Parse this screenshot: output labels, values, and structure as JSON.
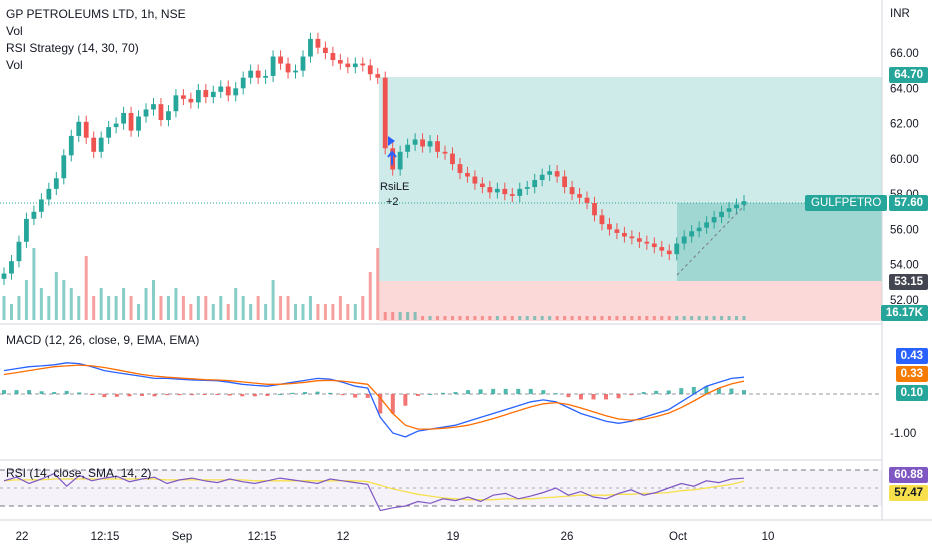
{
  "header": {
    "title": "GP PETROLEUMS LTD, 1h, NSE",
    "indicators": [
      "Vol",
      "RSI Strategy (14, 30, 70)",
      "Vol"
    ],
    "currency": "INR"
  },
  "macd_legend": "MACD (12, 26, close, 9, EMA, EMA)",
  "rsi_legend": "RSI (14, close, SMA, 14, 2)",
  "symbol_tag": "GULFPETRO",
  "strategy": {
    "signal": "RsiLE",
    "qty": "+2"
  },
  "price_labels": {
    "target": "64.70",
    "last": "57.60",
    "stop": "53.15",
    "volume": "16.17K"
  },
  "macd_labels": {
    "macd": "0.43",
    "signal": "0.33",
    "hist": "0.10"
  },
  "rsi_labels": {
    "rsi": "60.88",
    "ma": "57.47"
  },
  "colors": {
    "up": "#26a69a",
    "down": "#ef5350",
    "target_zone": "#26a69a",
    "stop_zone": "#ef5350",
    "macd_line": "#2962ff",
    "signal_line": "#ff6d00",
    "rsi_line": "#7e57c2",
    "rsi_ma": "#f7e04b",
    "pill_blue": "#2962ff",
    "pill_orange": "#f57c00",
    "pill_gray": "#434651"
  },
  "chart_data": [
    {
      "type": "line",
      "title": "GP PETROLEUMS LTD, 1h, NSE",
      "xlabel": "",
      "ylabel": "INR",
      "x_ticks": [
        "22",
        "12:15",
        "Sep",
        "12:15",
        "12",
        "19",
        "26",
        "Oct",
        "10"
      ],
      "y_ticks": [
        "52.00",
        "54.00",
        "56.00",
        "58.00",
        "60.00",
        "62.00",
        "64.00",
        "66.00"
      ],
      "ylim": [
        51,
        68
      ],
      "series": [
        {
          "values": [
            53.5,
            54.2,
            55.3,
            56.6,
            57.0,
            57.7,
            58.3,
            58.9,
            60.2,
            61.3,
            62.1,
            61.2,
            60.4,
            61.2,
            61.8,
            62.0,
            62.6,
            61.6,
            62.4,
            62.8,
            63.1,
            62.2,
            62.7,
            63.6,
            63.4,
            63.2,
            63.9,
            63.5,
            63.8,
            64.1,
            63.6,
            64.0,
            64.6,
            65.0,
            64.6,
            64.7,
            65.8,
            65.4,
            64.9,
            65.0,
            65.8,
            66.8,
            66.3,
            66.0,
            65.6,
            65.4,
            65.2,
            65.4,
            65.3,
            64.8,
            64.6,
            60.6,
            59.4,
            60.4,
            60.8,
            61.1,
            60.7,
            61.0,
            60.4,
            60.3,
            59.7,
            59.2,
            59.0,
            58.6,
            58.4,
            58.1,
            58.3,
            58.0,
            57.9,
            58.3,
            58.4,
            58.8,
            59.1,
            59.3,
            59.0,
            58.4,
            58.0,
            57.8,
            57.5,
            56.8,
            56.3,
            56.0,
            55.8,
            55.6,
            55.5,
            55.3,
            55.2,
            55.0,
            54.8,
            54.6,
            55.2,
            55.6,
            55.9,
            56.1,
            56.4,
            56.7,
            57.0,
            57.2,
            57.4,
            57.6
          ]
        }
      ],
      "volume": [
        0.3,
        0.2,
        0.3,
        0.5,
        0.9,
        0.4,
        0.3,
        0.6,
        0.5,
        0.4,
        0.3,
        0.8,
        0.3,
        0.4,
        0.3,
        0.3,
        0.4,
        0.3,
        0.2,
        0.4,
        0.5,
        0.3,
        0.3,
        0.4,
        0.3,
        0.2,
        0.3,
        0.3,
        0.2,
        0.3,
        0.2,
        0.4,
        0.3,
        0.2,
        0.3,
        0.2,
        0.5,
        0.3,
        0.3,
        0.2,
        0.2,
        0.3,
        0.2,
        0.2,
        0.2,
        0.3,
        0.2,
        0.2,
        0.3,
        0.6,
        0.9,
        0.1,
        0.1,
        0.1,
        0.1,
        0.1,
        0.05,
        0.05,
        0.05,
        0.05,
        0.05,
        0.05,
        0.05,
        0.05,
        0.05,
        0.05,
        0.05,
        0.05,
        0.05,
        0.05,
        0.05,
        0.05,
        0.05,
        0.05,
        0.05,
        0.05,
        0.05,
        0.05,
        0.05,
        0.05,
        0.05,
        0.05,
        0.05,
        0.05,
        0.05,
        0.05,
        0.05,
        0.05,
        0.05,
        0.05,
        0.05,
        0.05,
        0.05,
        0.05,
        0.05,
        0.05,
        0.05,
        0.05,
        0.05,
        0.05
      ]
    },
    {
      "type": "line",
      "title": "MACD (12, 26, close, 9, EMA, EMA)",
      "y_ticks": [
        "-1.00"
      ],
      "ylim": [
        -1.4,
        1.2
      ],
      "series": [
        {
          "name": "MACD",
          "values": [
            0.6,
            0.65,
            0.7,
            0.72,
            0.75,
            0.8,
            0.78,
            0.7,
            0.6,
            0.55,
            0.5,
            0.45,
            0.4,
            0.4,
            0.38,
            0.36,
            0.35,
            0.34,
            0.3,
            0.25,
            0.22,
            0.2,
            0.25,
            0.3,
            0.35,
            0.4,
            0.38,
            0.3,
            0.2,
            0.15,
            -0.6,
            -1.0,
            -1.1,
            -0.95,
            -0.9,
            -0.85,
            -0.8,
            -0.7,
            -0.6,
            -0.5,
            -0.4,
            -0.3,
            -0.2,
            -0.15,
            -0.2,
            -0.35,
            -0.5,
            -0.6,
            -0.7,
            -0.75,
            -0.7,
            -0.6,
            -0.5,
            -0.4,
            -0.2,
            0.0,
            0.2,
            0.3,
            0.4,
            0.43
          ]
        },
        {
          "name": "Signal",
          "values": [
            0.5,
            0.55,
            0.6,
            0.65,
            0.7,
            0.72,
            0.74,
            0.72,
            0.68,
            0.62,
            0.56,
            0.5,
            0.46,
            0.43,
            0.41,
            0.39,
            0.37,
            0.36,
            0.34,
            0.31,
            0.28,
            0.25,
            0.25,
            0.27,
            0.3,
            0.34,
            0.35,
            0.33,
            0.29,
            0.25,
            -0.1,
            -0.5,
            -0.8,
            -0.9,
            -0.9,
            -0.88,
            -0.85,
            -0.8,
            -0.72,
            -0.63,
            -0.53,
            -0.43,
            -0.33,
            -0.25,
            -0.22,
            -0.27,
            -0.36,
            -0.46,
            -0.56,
            -0.64,
            -0.67,
            -0.65,
            -0.58,
            -0.49,
            -0.35,
            -0.18,
            0.0,
            0.15,
            0.26,
            0.33
          ]
        }
      ]
    },
    {
      "type": "line",
      "title": "RSI (14, close, SMA, 14, 2)",
      "ylim": [
        20,
        80
      ],
      "series": [
        {
          "name": "RSI",
          "values": [
            58,
            62,
            55,
            60,
            66,
            52,
            64,
            58,
            61,
            63,
            57,
            60,
            62,
            55,
            59,
            61,
            58,
            56,
            60,
            57,
            55,
            58,
            61,
            59,
            57,
            55,
            60,
            58,
            56,
            54,
            25,
            28,
            30,
            35,
            33,
            38,
            36,
            40,
            35,
            42,
            44,
            38,
            41,
            45,
            50,
            42,
            46,
            40,
            38,
            44,
            48,
            42,
            45,
            50,
            55,
            52,
            58,
            56,
            60,
            60.88
          ]
        },
        {
          "name": "MA",
          "values": [
            58,
            59,
            59,
            59,
            60,
            60,
            60,
            60,
            60,
            60,
            60,
            60,
            60,
            59,
            59,
            59,
            59,
            59,
            59,
            59,
            58,
            58,
            58,
            58,
            58,
            58,
            58,
            58,
            58,
            57,
            53,
            49,
            46,
            43,
            41,
            39,
            38,
            37,
            37,
            37,
            38,
            38,
            38,
            39,
            40,
            41,
            42,
            42,
            42,
            43,
            43,
            44,
            44,
            45,
            47,
            48,
            50,
            52,
            54,
            57.47
          ]
        }
      ]
    }
  ]
}
